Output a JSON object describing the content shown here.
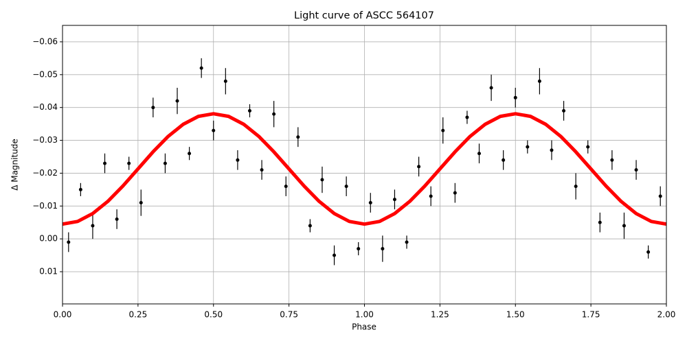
{
  "chart_data": {
    "type": "scatter",
    "title": "Light curve of ASCC 564107",
    "xlabel": "Phase",
    "ylabel": "Δ Magnitude",
    "xlim": [
      0,
      2
    ],
    "ylim": [
      0.0198,
      -0.065
    ],
    "grid": true,
    "xticks": [
      {
        "value": 0,
        "label": "0.00"
      },
      0.25,
      {
        "value": 0.5,
        "label": "0.50"
      },
      0.75,
      {
        "value": 1,
        "label": "1.00"
      },
      1.25,
      {
        "value": 1.5,
        "label": "1.50"
      },
      1.75,
      {
        "value": 2,
        "label": "2.00"
      }
    ],
    "yticks": [
      {
        "value": -0.06,
        "label": "−0.06"
      },
      {
        "value": -0.05,
        "label": "−0.05"
      },
      {
        "value": -0.04,
        "label": "−0.04"
      },
      {
        "value": -0.03,
        "label": "−0.03"
      },
      {
        "value": -0.02,
        "label": "−0.02"
      },
      {
        "value": -0.01,
        "label": "−0.01"
      },
      {
        "value": 0,
        "label": "0.00"
      },
      0.01
    ],
    "points": {
      "color": "#000000",
      "x": [
        0.02,
        0.06,
        0.1,
        0.14,
        0.18,
        0.22,
        0.26,
        0.3,
        0.34,
        0.38,
        0.42,
        0.46,
        0.5,
        0.54,
        0.58,
        0.62,
        0.66,
        0.7,
        0.74,
        0.78,
        0.82,
        0.86,
        0.9,
        0.94,
        0.98,
        1.02,
        1.06,
        1.1,
        1.14,
        1.18,
        1.22,
        1.26,
        1.3,
        1.34,
        1.38,
        1.42,
        1.46,
        1.5,
        1.54,
        1.58,
        1.62,
        1.66,
        1.7,
        1.74,
        1.78,
        1.82,
        1.86,
        1.9,
        1.94,
        1.98
      ],
      "values": [
        0.001,
        -0.015,
        -0.004,
        -0.023,
        -0.006,
        -0.023,
        -0.011,
        -0.04,
        -0.023,
        -0.042,
        -0.026,
        -0.052,
        -0.033,
        -0.048,
        -0.024,
        -0.039,
        -0.021,
        -0.038,
        -0.016,
        -0.031,
        -0.004,
        -0.018,
        0.005,
        -0.016,
        0.003,
        -0.011,
        0.003,
        -0.012,
        0.001,
        -0.022,
        -0.013,
        -0.033,
        -0.014,
        -0.037,
        -0.026,
        -0.046,
        -0.024,
        -0.043,
        -0.028,
        -0.048,
        -0.027,
        -0.039,
        -0.016,
        -0.028,
        -0.005,
        -0.024,
        -0.004,
        -0.021,
        0.004,
        -0.013
      ],
      "errors": [
        0.003,
        0.002,
        0.004,
        0.003,
        0.003,
        0.002,
        0.004,
        0.003,
        0.003,
        0.004,
        0.002,
        0.003,
        0.003,
        0.004,
        0.003,
        0.002,
        0.003,
        0.004,
        0.003,
        0.003,
        0.002,
        0.004,
        0.003,
        0.003,
        0.002,
        0.003,
        0.004,
        0.003,
        0.002,
        0.003,
        0.003,
        0.004,
        0.003,
        0.002,
        0.003,
        0.004,
        0.003,
        0.003,
        0.002,
        0.004,
        0.003,
        0.003,
        0.004,
        0.002,
        0.003,
        0.003,
        0.004,
        0.003,
        0.002,
        0.003
      ]
    },
    "curve": {
      "color": "#ff0000",
      "x": [
        0,
        0.05,
        0.1,
        0.15,
        0.2,
        0.25,
        0.3,
        0.35,
        0.4,
        0.45,
        0.5,
        0.55,
        0.6,
        0.65,
        0.7,
        0.75,
        0.8,
        0.85,
        0.9,
        0.95,
        1,
        1.05,
        1.1,
        1.15,
        1.2,
        1.25,
        1.3,
        1.35,
        1.4,
        1.45,
        1.5,
        1.55,
        1.6,
        1.65,
        1.7,
        1.75,
        1.8,
        1.85,
        1.9,
        1.95,
        2
      ],
      "values": [
        -0.0045,
        -0.0053,
        -0.0077,
        -0.0114,
        -0.0161,
        -0.0213,
        -0.0265,
        -0.0312,
        -0.0349,
        -0.0373,
        -0.0381,
        -0.0373,
        -0.0349,
        -0.0312,
        -0.0265,
        -0.0213,
        -0.0161,
        -0.0114,
        -0.0077,
        -0.0053,
        -0.0045,
        -0.0053,
        -0.0077,
        -0.0114,
        -0.0161,
        -0.0213,
        -0.0265,
        -0.0312,
        -0.0349,
        -0.0373,
        -0.0381,
        -0.0373,
        -0.0349,
        -0.0312,
        -0.0265,
        -0.0213,
        -0.0161,
        -0.0114,
        -0.0077,
        -0.0053,
        -0.0045
      ]
    }
  }
}
